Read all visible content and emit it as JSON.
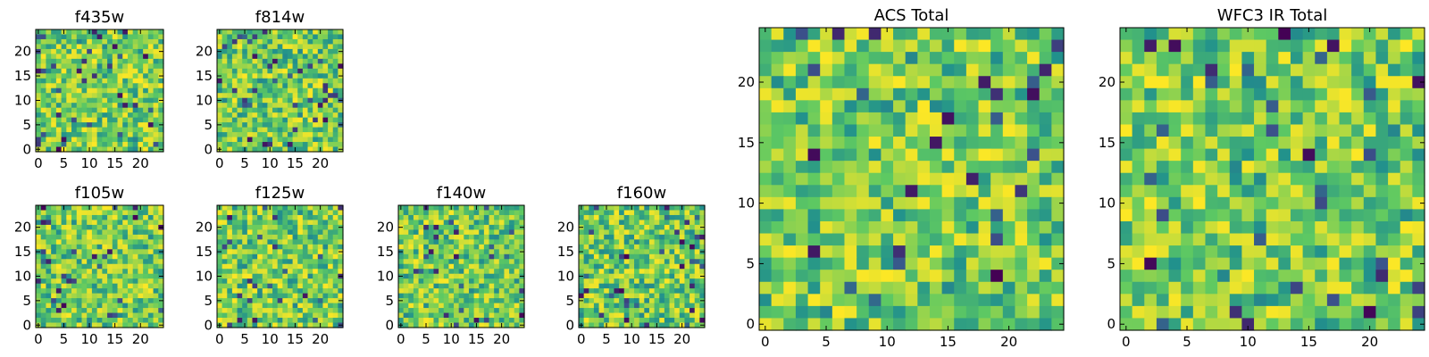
{
  "figure": {
    "colormap": "viridis",
    "colormap_stops": [
      "#440154",
      "#3b528b",
      "#21918c",
      "#5ec962",
      "#fde725"
    ]
  },
  "chart_data": [
    {
      "type": "heatmap",
      "title": "f435w",
      "grid": [
        25,
        25
      ],
      "x_ticks": [
        0,
        5,
        10,
        15,
        20
      ],
      "y_ticks": [
        0,
        5,
        10,
        15,
        20
      ],
      "xlim": [
        -0.5,
        24.5
      ],
      "ylim": [
        -0.5,
        24.5
      ],
      "value_range": [
        0,
        1
      ],
      "seed": 11
    },
    {
      "type": "heatmap",
      "title": "f814w",
      "grid": [
        25,
        25
      ],
      "x_ticks": [
        0,
        5,
        10,
        15,
        20
      ],
      "y_ticks": [
        0,
        5,
        10,
        15,
        20
      ],
      "xlim": [
        -0.5,
        24.5
      ],
      "ylim": [
        -0.5,
        24.5
      ],
      "value_range": [
        0,
        1
      ],
      "seed": 23
    },
    {
      "type": "heatmap",
      "title": "f105w",
      "grid": [
        25,
        25
      ],
      "x_ticks": [
        0,
        5,
        10,
        15,
        20
      ],
      "y_ticks": [
        0,
        5,
        10,
        15,
        20
      ],
      "xlim": [
        -0.5,
        24.5
      ],
      "ylim": [
        -0.5,
        24.5
      ],
      "value_range": [
        0,
        1
      ],
      "seed": 37
    },
    {
      "type": "heatmap",
      "title": "f125w",
      "grid": [
        25,
        25
      ],
      "x_ticks": [
        0,
        5,
        10,
        15,
        20
      ],
      "y_ticks": [
        0,
        5,
        10,
        15,
        20
      ],
      "xlim": [
        -0.5,
        24.5
      ],
      "ylim": [
        -0.5,
        24.5
      ],
      "value_range": [
        0,
        1
      ],
      "seed": 41
    },
    {
      "type": "heatmap",
      "title": "f140w",
      "grid": [
        25,
        25
      ],
      "x_ticks": [
        0,
        5,
        10,
        15,
        20
      ],
      "y_ticks": [
        0,
        5,
        10,
        15,
        20
      ],
      "xlim": [
        -0.5,
        24.5
      ],
      "ylim": [
        -0.5,
        24.5
      ],
      "value_range": [
        0,
        1
      ],
      "seed": 53
    },
    {
      "type": "heatmap",
      "title": "f160w",
      "grid": [
        25,
        25
      ],
      "x_ticks": [
        0,
        5,
        10,
        15,
        20
      ],
      "y_ticks": [
        0,
        5,
        10,
        15,
        20
      ],
      "xlim": [
        -0.5,
        24.5
      ],
      "ylim": [
        -0.5,
        24.5
      ],
      "value_range": [
        0,
        1
      ],
      "seed": 67
    },
    {
      "type": "heatmap",
      "title": "ACS Total",
      "grid": [
        25,
        25
      ],
      "x_ticks": [
        0,
        5,
        10,
        15,
        20
      ],
      "y_ticks": [
        0,
        5,
        10,
        15,
        20
      ],
      "xlim": [
        -0.5,
        24.5
      ],
      "ylim": [
        -0.5,
        24.5
      ],
      "value_range": [
        0,
        1
      ],
      "seed": 79
    },
    {
      "type": "heatmap",
      "title": "WFC3 IR Total",
      "grid": [
        25,
        25
      ],
      "x_ticks": [
        0,
        5,
        10,
        15,
        20
      ],
      "y_ticks": [
        0,
        5,
        10,
        15,
        20
      ],
      "xlim": [
        -0.5,
        24.5
      ],
      "ylim": [
        -0.5,
        24.5
      ],
      "value_range": [
        0,
        1
      ],
      "seed": 97
    }
  ]
}
